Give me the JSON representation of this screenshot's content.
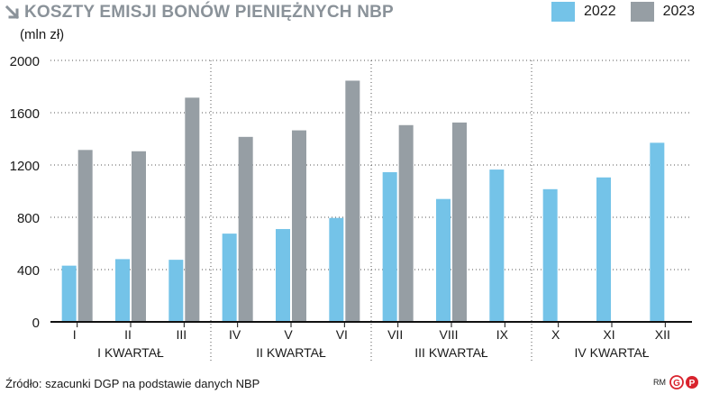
{
  "header": {
    "title": "KOSZTY EMISJI BONÓW PIENIĘŻNYCH NBP",
    "unit": "(mln zł)",
    "title_color": "#8a9299"
  },
  "legend": [
    {
      "label": "2022",
      "color": "#74c3e8"
    },
    {
      "label": "2023",
      "color": "#969ea4"
    }
  ],
  "chart_data": {
    "type": "bar",
    "categories": [
      "I",
      "II",
      "III",
      "IV",
      "V",
      "VI",
      "VII",
      "VIII",
      "IX",
      "X",
      "XI",
      "XII"
    ],
    "groups": [
      "I KWARTAŁ",
      "II KWARTAŁ",
      "III KWARTAŁ",
      "IV KWARTAŁ"
    ],
    "series": [
      {
        "name": "2022",
        "color": "#74c3e8",
        "values": [
          430,
          480,
          475,
          675,
          710,
          795,
          1145,
          940,
          1165,
          1015,
          1105,
          1370
        ]
      },
      {
        "name": "2023",
        "color": "#969ea4",
        "values": [
          1315,
          1305,
          1715,
          1415,
          1465,
          1845,
          1505,
          1525,
          null,
          null,
          null,
          null
        ]
      }
    ],
    "yticks": [
      0,
      400,
      800,
      1200,
      1600,
      2000
    ],
    "ylim": [
      0,
      2000
    ],
    "grid": "horizontal dotted"
  },
  "footer": {
    "source": "Źródło: szacunki DGP na podstawie danych NBP",
    "author": "RM",
    "logo_letters": [
      "G",
      "P"
    ]
  }
}
